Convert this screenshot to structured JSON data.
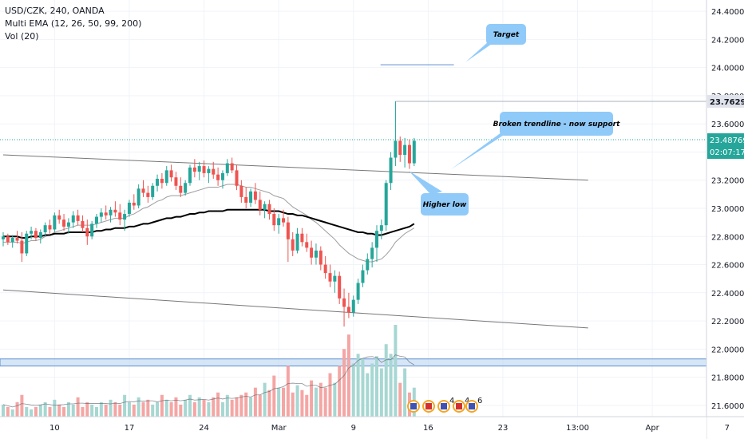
{
  "legend": {
    "symbol_line": "USD/CZK, 240, OANDA",
    "ema_line": "Multi EMA (12, 26, 50, 99, 200)",
    "vol_line": "Vol (20)"
  },
  "colors": {
    "up": "#26a69a",
    "down": "#ef5350",
    "vol_up": "#a7d7d2",
    "vol_down": "#f4a6a4",
    "ema_long": "#000000",
    "ema_mid": "#9e9e9e",
    "callout": "#90caf9",
    "zone": "#c5dbf2",
    "zone_border": "#5b8fd1",
    "price_badge": "#26a69a",
    "high_badge": "#e0e3eb"
  },
  "chart_data": {
    "type": "candlestick",
    "instrument": "USD/CZK",
    "timeframe": "240",
    "source": "OANDA",
    "y_axis": {
      "ticks": [
        "24.40000",
        "24.20000",
        "24.00000",
        "23.80000",
        "23.60000",
        "23.40000",
        "23.20000",
        "23.00000",
        "22.80000",
        "22.60000",
        "22.40000",
        "22.20000",
        "22.00000",
        "21.80000",
        "21.60000"
      ],
      "range": [
        21.52,
        24.48
      ]
    },
    "x_axis": {
      "ticks": [
        "10",
        "17",
        "24",
        "Mar",
        "9",
        "16",
        "23",
        "13:00",
        "Apr",
        "7"
      ]
    },
    "candles": [
      [
        22.78,
        22.83,
        22.73,
        22.8
      ],
      [
        22.8,
        22.82,
        22.74,
        22.76
      ],
      [
        22.76,
        22.81,
        22.72,
        22.79
      ],
      [
        22.79,
        22.84,
        22.75,
        22.77
      ],
      [
        22.77,
        22.83,
        22.62,
        22.68
      ],
      [
        22.68,
        22.84,
        22.66,
        22.82
      ],
      [
        22.82,
        22.87,
        22.78,
        22.84
      ],
      [
        22.84,
        22.86,
        22.77,
        22.79
      ],
      [
        22.79,
        22.85,
        22.75,
        22.83
      ],
      [
        22.83,
        22.9,
        22.8,
        22.88
      ],
      [
        22.88,
        22.92,
        22.82,
        22.85
      ],
      [
        22.85,
        22.97,
        22.83,
        22.95
      ],
      [
        22.95,
        22.99,
        22.89,
        22.92
      ],
      [
        22.92,
        22.96,
        22.84,
        22.87
      ],
      [
        22.87,
        22.93,
        22.82,
        22.9
      ],
      [
        22.9,
        22.98,
        22.86,
        22.95
      ],
      [
        22.95,
        22.99,
        22.88,
        22.91
      ],
      [
        22.91,
        22.95,
        22.83,
        22.86
      ],
      [
        22.86,
        22.92,
        22.74,
        22.8
      ],
      [
        22.8,
        22.91,
        22.78,
        22.89
      ],
      [
        22.89,
        22.96,
        22.86,
        22.94
      ],
      [
        22.94,
        23.0,
        22.9,
        22.97
      ],
      [
        22.97,
        23.02,
        22.92,
        22.95
      ],
      [
        22.95,
        23.01,
        22.9,
        22.99
      ],
      [
        22.99,
        23.05,
        22.94,
        22.97
      ],
      [
        22.97,
        23.03,
        22.88,
        22.92
      ],
      [
        22.92,
        22.99,
        22.84,
        22.96
      ],
      [
        22.96,
        23.06,
        22.94,
        23.04
      ],
      [
        23.04,
        23.1,
        22.99,
        23.02
      ],
      [
        23.02,
        23.17,
        23.0,
        23.14
      ],
      [
        23.14,
        23.2,
        23.08,
        23.11
      ],
      [
        23.11,
        23.16,
        23.04,
        23.08
      ],
      [
        23.08,
        23.18,
        23.06,
        23.16
      ],
      [
        23.16,
        23.24,
        23.12,
        23.21
      ],
      [
        23.21,
        23.25,
        23.14,
        23.18
      ],
      [
        23.18,
        23.3,
        23.16,
        23.27
      ],
      [
        23.27,
        23.31,
        23.19,
        23.22
      ],
      [
        23.22,
        23.26,
        23.13,
        23.16
      ],
      [
        23.16,
        23.22,
        23.08,
        23.11
      ],
      [
        23.11,
        23.2,
        23.09,
        23.18
      ],
      [
        23.18,
        23.31,
        23.16,
        23.29
      ],
      [
        23.29,
        23.35,
        23.22,
        23.26
      ],
      [
        23.26,
        23.33,
        23.2,
        23.3
      ],
      [
        23.3,
        23.34,
        23.22,
        23.25
      ],
      [
        23.25,
        23.3,
        23.18,
        23.28
      ],
      [
        23.28,
        23.33,
        23.21,
        23.24
      ],
      [
        23.24,
        23.29,
        23.16,
        23.2
      ],
      [
        23.2,
        23.27,
        23.14,
        23.25
      ],
      [
        23.25,
        23.35,
        23.23,
        23.32
      ],
      [
        23.32,
        23.36,
        23.25,
        23.27
      ],
      [
        23.27,
        23.31,
        23.13,
        23.16
      ],
      [
        23.16,
        23.2,
        23.04,
        23.08
      ],
      [
        23.08,
        23.15,
        23.0,
        23.04
      ],
      [
        23.04,
        23.14,
        23.01,
        23.12
      ],
      [
        23.12,
        23.18,
        23.03,
        23.06
      ],
      [
        23.06,
        23.12,
        22.95,
        22.99
      ],
      [
        22.99,
        23.05,
        22.93,
        23.03
      ],
      [
        23.03,
        23.06,
        22.92,
        22.96
      ],
      [
        22.96,
        23.0,
        22.84,
        22.88
      ],
      [
        22.88,
        22.96,
        22.82,
        22.93
      ],
      [
        22.93,
        22.99,
        22.87,
        22.9
      ],
      [
        22.9,
        22.94,
        22.62,
        22.78
      ],
      [
        22.78,
        22.83,
        22.66,
        22.7
      ],
      [
        22.7,
        22.86,
        22.68,
        22.82
      ],
      [
        22.82,
        22.86,
        22.73,
        22.76
      ],
      [
        22.76,
        22.82,
        22.69,
        22.72
      ],
      [
        22.72,
        22.77,
        22.6,
        22.65
      ],
      [
        22.65,
        22.75,
        22.6,
        22.7
      ],
      [
        22.7,
        22.73,
        22.56,
        22.6
      ],
      [
        22.6,
        22.66,
        22.5,
        22.54
      ],
      [
        22.54,
        22.6,
        22.44,
        22.48
      ],
      [
        22.48,
        22.56,
        22.4,
        22.52
      ],
      [
        22.52,
        22.55,
        22.32,
        22.36
      ],
      [
        22.36,
        22.43,
        22.16,
        22.3
      ],
      [
        22.3,
        22.4,
        22.22,
        22.26
      ],
      [
        22.26,
        22.38,
        22.23,
        22.35
      ],
      [
        22.35,
        22.5,
        22.32,
        22.47
      ],
      [
        22.47,
        22.6,
        22.44,
        22.56
      ],
      [
        22.56,
        22.68,
        22.53,
        22.64
      ],
      [
        22.64,
        22.76,
        22.58,
        22.72
      ],
      [
        22.72,
        22.88,
        22.62,
        22.84
      ],
      [
        22.84,
        22.92,
        22.78,
        22.88
      ],
      [
        22.88,
        23.2,
        22.84,
        23.18
      ],
      [
        23.18,
        23.4,
        23.13,
        23.36
      ],
      [
        23.36,
        23.76,
        23.3,
        23.48
      ],
      [
        23.48,
        23.51,
        23.33,
        23.38
      ],
      [
        23.38,
        23.5,
        23.29,
        23.45
      ],
      [
        23.45,
        23.49,
        23.28,
        23.32
      ],
      [
        23.32,
        23.5,
        23.3,
        23.48
      ]
    ],
    "volumes": [
      5,
      4,
      3,
      6,
      9,
      4,
      3,
      4,
      5,
      6,
      4,
      7,
      5,
      4,
      6,
      5,
      8,
      4,
      6,
      5,
      4,
      6,
      5,
      7,
      6,
      5,
      9,
      6,
      5,
      8,
      6,
      7,
      5,
      6,
      9,
      7,
      6,
      8,
      5,
      7,
      9,
      6,
      8,
      7,
      6,
      8,
      10,
      6,
      9,
      7,
      8,
      9,
      10,
      8,
      12,
      9,
      14,
      11,
      17,
      12,
      12,
      21,
      10,
      13,
      11,
      9,
      15,
      12,
      14,
      12,
      18,
      14,
      21,
      28,
      34,
      22,
      26,
      24,
      18,
      22,
      25,
      20,
      30,
      26,
      38,
      14,
      20,
      10,
      12
    ],
    "ema_long": [
      22.8,
      22.8,
      22.8,
      22.8,
      22.79,
      22.79,
      22.8,
      22.8,
      22.8,
      22.81,
      22.81,
      22.82,
      22.82,
      22.82,
      22.83,
      22.83,
      22.83,
      22.83,
      22.83,
      22.83,
      22.84,
      22.84,
      22.85,
      22.85,
      22.86,
      22.86,
      22.86,
      22.87,
      22.87,
      22.88,
      22.89,
      22.89,
      22.9,
      22.91,
      22.92,
      22.93,
      22.93,
      22.94,
      22.94,
      22.95,
      22.96,
      22.96,
      22.97,
      22.97,
      22.98,
      22.98,
      22.98,
      22.98,
      22.99,
      22.99,
      22.99,
      22.99,
      22.99,
      22.99,
      22.99,
      22.99,
      22.99,
      22.98,
      22.98,
      22.98,
      22.97,
      22.96,
      22.96,
      22.95,
      22.95,
      22.94,
      22.93,
      22.92,
      22.91,
      22.9,
      22.89,
      22.88,
      22.87,
      22.86,
      22.85,
      22.84,
      22.83,
      22.83,
      22.82,
      22.82,
      22.81,
      22.81,
      22.82,
      22.83,
      22.84,
      22.85,
      22.86,
      22.87,
      22.89
    ],
    "ema_mid": [
      22.76,
      22.76,
      22.76,
      22.76,
      22.75,
      22.76,
      22.77,
      22.77,
      22.78,
      22.8,
      22.81,
      22.83,
      22.84,
      22.85,
      22.86,
      22.87,
      22.88,
      22.88,
      22.88,
      22.88,
      22.89,
      22.9,
      22.91,
      22.92,
      22.93,
      22.93,
      22.93,
      22.95,
      22.96,
      22.98,
      23.0,
      23.01,
      23.03,
      23.05,
      23.06,
      23.08,
      23.09,
      23.09,
      23.09,
      23.1,
      23.11,
      23.12,
      23.13,
      23.14,
      23.15,
      23.15,
      23.15,
      23.16,
      23.17,
      23.17,
      23.17,
      23.16,
      23.15,
      23.15,
      23.14,
      23.13,
      23.12,
      23.11,
      23.09,
      23.08,
      23.07,
      23.04,
      23.01,
      22.99,
      22.97,
      22.95,
      22.92,
      22.9,
      22.87,
      22.84,
      22.81,
      22.78,
      22.74,
      22.71,
      22.68,
      22.66,
      22.64,
      22.63,
      22.62,
      22.62,
      22.63,
      22.64,
      22.67,
      22.71,
      22.76,
      22.79,
      22.82,
      22.84,
      22.86
    ],
    "trendlines": [
      {
        "from": [
          0,
          23.38
        ],
        "to": [
          115,
          23.2
        ]
      },
      {
        "from": [
          0,
          22.42
        ],
        "to": [
          115,
          22.15
        ]
      }
    ],
    "target_line": {
      "from": [
        62,
        24.02
      ],
      "to": [
        76,
        24.02
      ]
    },
    "high_line": {
      "value": 23.76
    },
    "current_price_line": {
      "value": 23.48769
    },
    "support_zone": [
      21.88,
      21.93
    ],
    "price_label": "23.48769",
    "countdown_label": "02:07:17",
    "high_label": "23.76294"
  },
  "annotations": {
    "target": "Target",
    "broken": "Broken trendline - now support",
    "higher_low": "Higher low"
  },
  "events": {
    "badge_a": "4",
    "badge_b": "4",
    "badge_c": "6"
  }
}
